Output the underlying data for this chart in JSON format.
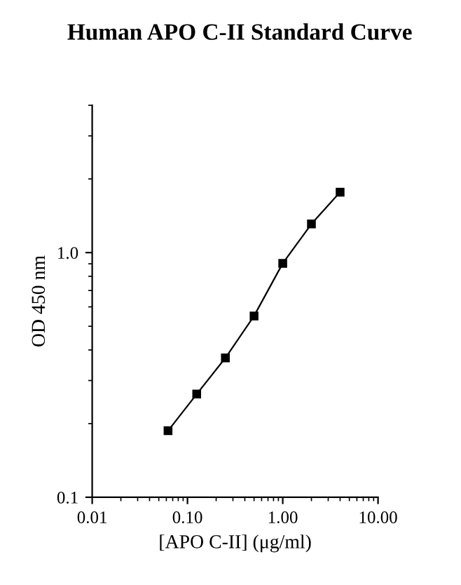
{
  "chart_data": {
    "type": "line",
    "title": "Human APO C-II Standard Curve",
    "xlabel": "[APO C-II] (μg/ml)",
    "ylabel": "OD 450 nm",
    "x": [
      0.0625,
      0.125,
      0.25,
      0.5,
      1,
      2,
      4
    ],
    "series": [
      {
        "color": "#000000",
        "values": [
          0.187,
          0.264,
          0.371,
          0.551,
          0.904,
          1.309,
          1.767
        ]
      }
    ],
    "log": "xy",
    "xlim": [
      0.01,
      10
    ],
    "ylim": [
      0.1,
      4
    ],
    "xticks": [
      0.01,
      {
        "value": 0.1,
        "label": "0.10"
      },
      {
        "value": 1,
        "label": "1.00"
      },
      {
        "value": 10,
        "label": "10.00"
      }
    ],
    "yticks": [
      0.1,
      {
        "value": 1,
        "label": "1.0"
      }
    ],
    "marker": "square",
    "line_style": "solid",
    "grid": false
  }
}
